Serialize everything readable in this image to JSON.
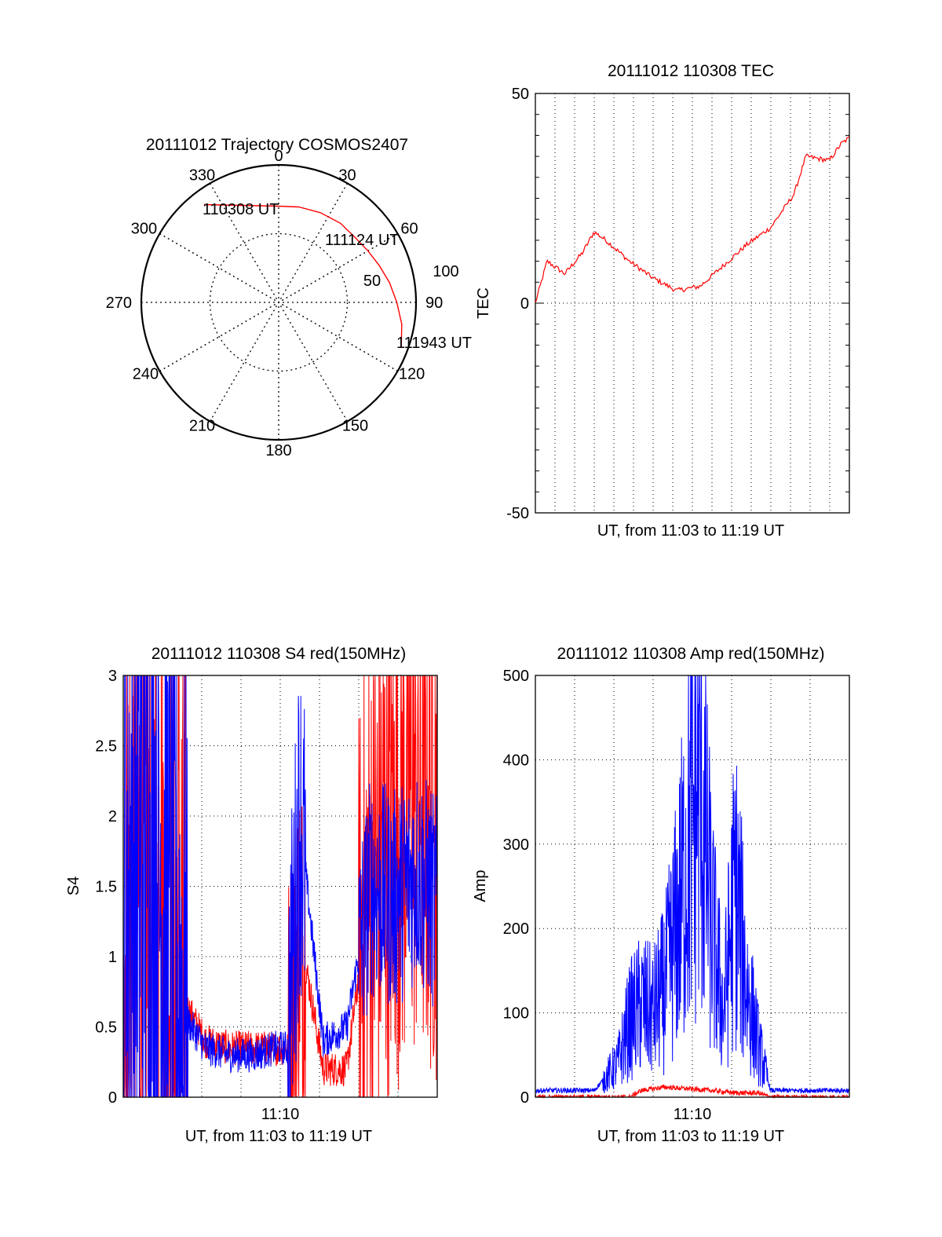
{
  "chart_data": [
    {
      "type": "polar",
      "title": "20111012 Trajectory COSMOS2407",
      "angle_labels": [
        "0",
        "30",
        "60",
        "90",
        "120",
        "150",
        "180",
        "210",
        "240",
        "270",
        "300",
        "330"
      ],
      "radial_labels": [
        "50",
        "100"
      ],
      "annotations": [
        "110308 UT",
        "111124 UT",
        "111943 UT"
      ],
      "trajectory": [
        {
          "azimuth": 0,
          "zenith": 70
        },
        {
          "azimuth": 12,
          "zenith": 71
        },
        {
          "azimuth": 25,
          "zenith": 72
        },
        {
          "azimuth": 38,
          "zenith": 73
        },
        {
          "azimuth": 50,
          "zenith": 73
        },
        {
          "azimuth": 60,
          "zenith": 75
        },
        {
          "azimuth": 70,
          "zenith": 78
        },
        {
          "azimuth": 80,
          "zenith": 82
        },
        {
          "azimuth": 90,
          "zenith": 86
        },
        {
          "azimuth": 100,
          "zenith": 91
        },
        {
          "azimuth": 110,
          "zenith": 95
        }
      ],
      "colors": {
        "trajectory": "#ff0000"
      }
    },
    {
      "type": "line",
      "title": "20111012 110308 TEC",
      "xlabel": "UT, from 11:03 to 11:19 UT",
      "ylabel": "TEC",
      "ylim": [
        -50,
        50
      ],
      "yticks": [
        "50",
        "0",
        "-50"
      ],
      "grid": "vertical dotted",
      "series": [
        {
          "color": "#ff0000",
          "x": [
            11.05,
            11.06,
            11.075,
            11.09,
            11.1,
            11.11,
            11.13,
            11.15,
            11.17,
            11.19,
            11.21,
            11.23,
            11.25,
            11.27,
            11.28,
            11.3,
            11.31,
            11.32
          ],
          "values": [
            0,
            10,
            7,
            12,
            17,
            15,
            10,
            6,
            3,
            4,
            9,
            14,
            18,
            26,
            35,
            34,
            38,
            40
          ]
        }
      ]
    },
    {
      "type": "line",
      "title": "20111012 110308 S4 red(150MHz)",
      "xlabel": "UT, from 11:03 to 11:19 UT",
      "ylabel": "S4",
      "ylim": [
        0,
        3
      ],
      "yticks": [
        "0",
        "0.5",
        "1",
        "1.5",
        "2",
        "2.5",
        "3"
      ],
      "xticks": [
        "11:10"
      ],
      "grid": true,
      "series": [
        {
          "color": "#0000ff",
          "x": [
            11.05,
            11.07,
            11.09,
            11.1,
            11.12,
            11.14,
            11.16,
            11.18,
            11.19,
            11.2,
            11.22,
            11.24,
            11.26,
            11.28,
            11.3,
            11.32
          ],
          "values": [
            1.5,
            2.0,
            1.2,
            0.6,
            0.35,
            0.3,
            0.3,
            0.35,
            0.35,
            2.0,
            0.4,
            0.5,
            1.5,
            1.4,
            1.6,
            1.3
          ]
        },
        {
          "color": "#ff0000",
          "x": [
            11.05,
            11.07,
            11.09,
            11.1,
            11.12,
            11.14,
            11.16,
            11.18,
            11.19,
            11.2,
            11.22,
            11.24,
            11.26,
            11.28,
            11.3,
            11.32
          ],
          "values": [
            1.0,
            1.5,
            1.0,
            0.7,
            0.4,
            0.35,
            0.35,
            0.35,
            0.35,
            1.2,
            0.2,
            0.2,
            1.5,
            2.0,
            2.2,
            2.0
          ]
        }
      ]
    },
    {
      "type": "line",
      "title": "20111012 110308 Amp red(150MHz)",
      "xlabel": "UT, from 11:03 to 11:19 UT",
      "ylabel": "Amp",
      "ylim": [
        0,
        500
      ],
      "yticks": [
        "0",
        "100",
        "200",
        "300",
        "400",
        "500"
      ],
      "xticks": [
        "11:10"
      ],
      "grid": true,
      "series": [
        {
          "color": "#0000ff",
          "x": [
            11.05,
            11.1,
            11.12,
            11.13,
            11.14,
            11.15,
            11.16,
            11.17,
            11.18,
            11.19,
            11.2,
            11.21,
            11.22,
            11.23,
            11.24,
            11.25,
            11.3,
            11.32
          ],
          "values": [
            8,
            8,
            40,
            90,
            110,
            100,
            130,
            200,
            300,
            380,
            200,
            100,
            250,
            130,
            60,
            8,
            8,
            8
          ]
        },
        {
          "color": "#ff0000",
          "x": [
            11.05,
            11.13,
            11.14,
            11.16,
            11.18,
            11.2,
            11.22,
            11.24,
            11.25,
            11.32
          ],
          "values": [
            0,
            0,
            8,
            12,
            10,
            8,
            5,
            5,
            0,
            0
          ]
        }
      ]
    }
  ]
}
